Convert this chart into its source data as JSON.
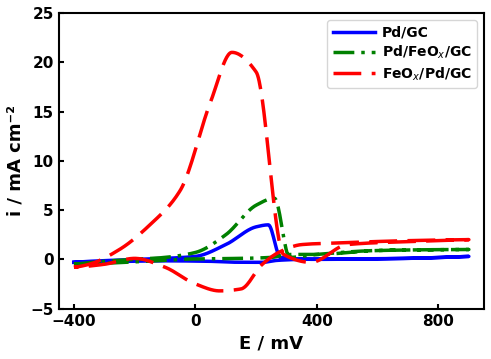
{
  "title": "",
  "xlabel": "E / mV",
  "ylabel": "i / mA cm⁻²",
  "xlim": [
    -450,
    950
  ],
  "ylim": [
    -5,
    25
  ],
  "xticks": [
    -400,
    0,
    400,
    800
  ],
  "yticks": [
    -5,
    0,
    5,
    10,
    15,
    20,
    25
  ],
  "background_color": "#ffffff",
  "blue_color": "#0000ff",
  "green_color": "#008000",
  "red_color": "#ff0000"
}
